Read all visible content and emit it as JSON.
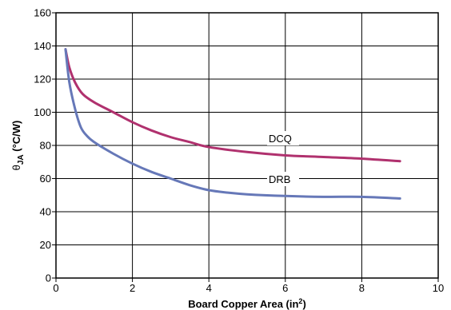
{
  "chart_data": {
    "type": "line",
    "xlabel": "Board Copper Area (in",
    "xlabel_sup": "2",
    "xlabel_end": ")",
    "ylabel_theta": "θ",
    "ylabel_sub": "JA",
    "ylabel_rest": " (°C/W)",
    "xlim": [
      0,
      10
    ],
    "ylim": [
      0,
      160
    ],
    "x_ticks": [
      0,
      2,
      4,
      6,
      8,
      10
    ],
    "y_ticks": [
      0,
      20,
      40,
      60,
      80,
      100,
      120,
      140,
      160
    ],
    "grid": true,
    "series": [
      {
        "name": "DCQ",
        "color": "#b0316e",
        "x": [
          0.25,
          0.35,
          0.5,
          0.7,
          1.0,
          1.5,
          2.0,
          2.5,
          3.0,
          3.5,
          4.0,
          5.0,
          6.0,
          7.0,
          8.0,
          9.0
        ],
        "y": [
          138,
          127,
          118,
          111,
          106,
          100,
          94,
          89,
          85,
          82,
          79,
          76,
          74,
          73,
          72,
          70.5
        ]
      },
      {
        "name": "DRB",
        "color": "#6678b8",
        "x": [
          0.25,
          0.35,
          0.5,
          0.65,
          0.8,
          1.0,
          1.5,
          2.0,
          2.5,
          3.0,
          3.5,
          4.0,
          4.5,
          5.0,
          6.0,
          7.0,
          8.0,
          9.0
        ],
        "y": [
          138,
          118,
          102,
          91,
          86,
          82,
          75,
          69,
          64,
          60,
          56,
          53,
          51.5,
          50.5,
          49.5,
          49,
          49,
          48
        ]
      }
    ]
  }
}
